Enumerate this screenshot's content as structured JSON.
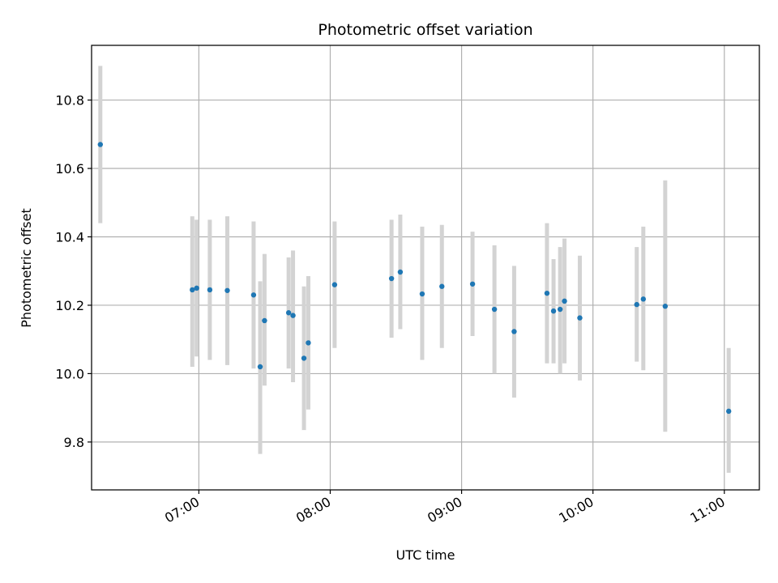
{
  "chart_data": {
    "type": "scatter",
    "title": "Photometric offset variation",
    "xlabel": "UTC time",
    "ylabel": "Photometric offset",
    "x_tick_labels": [
      "07:00",
      "08:00",
      "09:00",
      "10:00",
      "11:00"
    ],
    "y_tick_labels": [
      "9.8",
      "10.0",
      "10.2",
      "10.4",
      "10.6",
      "10.8"
    ],
    "grid": true,
    "xlim": [
      "06:11",
      "11:16"
    ],
    "ylim": [
      9.66,
      10.96
    ],
    "colors": {
      "point": "#1f77b4",
      "errorbar": "#d3d3d3",
      "grid": "#b0b0b0"
    },
    "points": [
      {
        "x": "06:15",
        "y": 10.67,
        "err_low": 10.44,
        "err_high": 10.9
      },
      {
        "x": "06:57",
        "y": 10.245,
        "err_low": 10.02,
        "err_high": 10.46
      },
      {
        "x": "06:59",
        "y": 10.25,
        "err_low": 10.05,
        "err_high": 10.45
      },
      {
        "x": "07:05",
        "y": 10.245,
        "err_low": 10.04,
        "err_high": 10.45
      },
      {
        "x": "07:13",
        "y": 10.243,
        "err_low": 10.025,
        "err_high": 10.46
      },
      {
        "x": "07:25",
        "y": 10.23,
        "err_low": 10.015,
        "err_high": 10.445
      },
      {
        "x": "07:28",
        "y": 10.02,
        "err_low": 9.765,
        "err_high": 10.27
      },
      {
        "x": "07:30",
        "y": 10.155,
        "err_low": 9.965,
        "err_high": 10.35
      },
      {
        "x": "07:41",
        "y": 10.178,
        "err_low": 10.015,
        "err_high": 10.34
      },
      {
        "x": "07:43",
        "y": 10.17,
        "err_low": 9.975,
        "err_high": 10.36
      },
      {
        "x": "07:48",
        "y": 10.045,
        "err_low": 9.835,
        "err_high": 10.255
      },
      {
        "x": "07:50",
        "y": 10.09,
        "err_low": 9.895,
        "err_high": 10.285
      },
      {
        "x": "08:02",
        "y": 10.26,
        "err_low": 10.075,
        "err_high": 10.445
      },
      {
        "x": "08:28",
        "y": 10.278,
        "err_low": 10.105,
        "err_high": 10.45
      },
      {
        "x": "08:32",
        "y": 10.297,
        "err_low": 10.13,
        "err_high": 10.465
      },
      {
        "x": "08:42",
        "y": 10.233,
        "err_low": 10.04,
        "err_high": 10.43
      },
      {
        "x": "08:51",
        "y": 10.255,
        "err_low": 10.075,
        "err_high": 10.435
      },
      {
        "x": "09:05",
        "y": 10.262,
        "err_low": 10.11,
        "err_high": 10.415
      },
      {
        "x": "09:15",
        "y": 10.188,
        "err_low": 10.0,
        "err_high": 10.375
      },
      {
        "x": "09:24",
        "y": 10.123,
        "err_low": 9.93,
        "err_high": 10.315
      },
      {
        "x": "09:39",
        "y": 10.235,
        "err_low": 10.03,
        "err_high": 10.44
      },
      {
        "x": "09:42",
        "y": 10.183,
        "err_low": 10.03,
        "err_high": 10.335
      },
      {
        "x": "09:45",
        "y": 10.188,
        "err_low": 10.0,
        "err_high": 10.37
      },
      {
        "x": "09:47",
        "y": 10.212,
        "err_low": 10.03,
        "err_high": 10.395
      },
      {
        "x": "09:54",
        "y": 10.163,
        "err_low": 9.98,
        "err_high": 10.345
      },
      {
        "x": "10:20",
        "y": 10.202,
        "err_low": 10.035,
        "err_high": 10.37
      },
      {
        "x": "10:23",
        "y": 10.218,
        "err_low": 10.01,
        "err_high": 10.43
      },
      {
        "x": "10:33",
        "y": 10.197,
        "err_low": 9.83,
        "err_high": 10.565
      },
      {
        "x": "11:02",
        "y": 9.89,
        "err_low": 9.71,
        "err_high": 10.075
      }
    ]
  }
}
